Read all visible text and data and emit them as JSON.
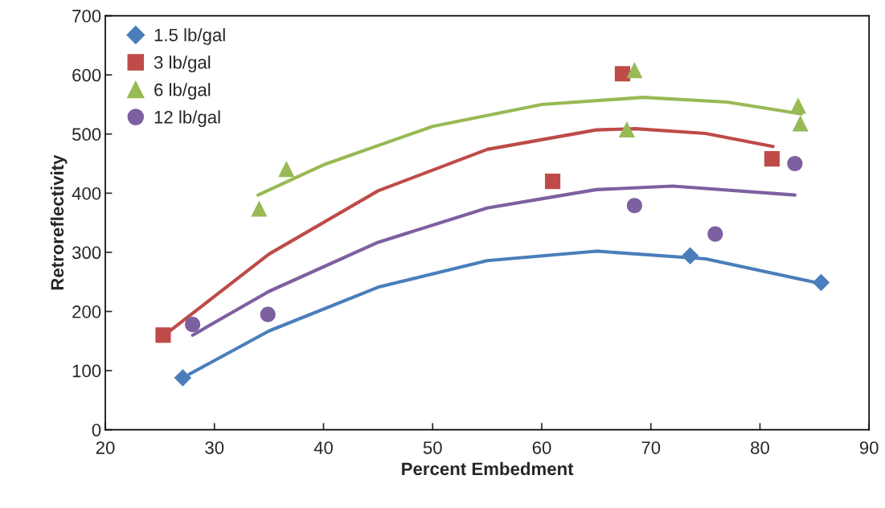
{
  "chart_data": {
    "type": "scatter",
    "xlabel": "Percent Embedment",
    "ylabel": "Retroreflectivity",
    "xlim": [
      20,
      90
    ],
    "xticks": [
      20,
      30,
      40,
      50,
      60,
      70,
      80,
      90
    ],
    "ylim": [
      0,
      700
    ],
    "yticks": [
      0,
      100,
      200,
      300,
      400,
      500,
      600,
      700
    ],
    "grid": false,
    "legend": "top left",
    "series": [
      {
        "name": "1.5 lb/gal",
        "color": "#4a7ebb",
        "marker": "diamond",
        "x": [
          27.1,
          73.6,
          85.6
        ],
        "values": [
          88,
          294,
          249
        ]
      },
      {
        "name": "3 lb/gal",
        "color": "#be4b48",
        "marker": "square",
        "x": [
          25.3,
          61.0,
          67.4,
          81.1
        ],
        "values": [
          160,
          420,
          602,
          458
        ]
      },
      {
        "name": "6 lb/gal",
        "color": "#98b954",
        "marker": "triangle",
        "x": [
          34.1,
          36.6,
          67.8,
          68.5,
          83.5,
          83.7
        ],
        "values": [
          374,
          441,
          508,
          608,
          548,
          518
        ]
      },
      {
        "name": "12 lb/gal",
        "color": "#7d60a0",
        "marker": "circle",
        "x": [
          28.0,
          34.9,
          68.5,
          75.9,
          83.2
        ],
        "values": [
          178,
          195,
          379,
          331,
          450
        ]
      },
      {
        "type": "line",
        "color": "#4a7ebb",
        "marker": "none",
        "x": [
          27.7,
          35,
          45,
          55,
          65,
          75,
          85.6
        ],
        "values": [
          94,
          167,
          241,
          286,
          302,
          289,
          247
        ]
      },
      {
        "type": "line",
        "color": "#be4b48",
        "marker": "none",
        "x": [
          25.9,
          35,
          45,
          55,
          65,
          68.6,
          75,
          81.2
        ],
        "values": [
          167,
          297,
          404,
          474,
          507,
          509,
          501,
          479
        ]
      },
      {
        "type": "line",
        "color": "#98b954",
        "marker": "none",
        "x": [
          34.0,
          40,
          50,
          60,
          69.3,
          77,
          83.8
        ],
        "values": [
          397,
          448,
          513,
          550,
          562,
          554,
          534
        ]
      },
      {
        "type": "line",
        "color": "#7d60a0",
        "marker": "none",
        "x": [
          28.0,
          35,
          45,
          55,
          65,
          72,
          83.2
        ],
        "values": [
          160,
          234,
          317,
          375,
          406,
          412,
          397
        ]
      }
    ]
  }
}
